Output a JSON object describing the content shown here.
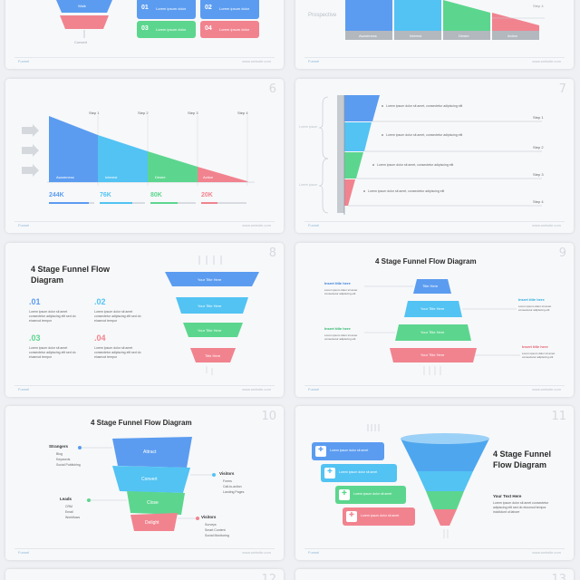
{
  "colors": {
    "blue": "#5b9cf0",
    "cyan": "#52c3f3",
    "green": "#5cd68e",
    "pink": "#f1838f"
  },
  "slide_numbers": [
    "6",
    "7",
    "8",
    "9",
    "10",
    "11",
    "12",
    "13"
  ],
  "top_left": {
    "funnel_labels": [
      "Walk",
      "Convert"
    ],
    "cards": [
      {
        "num": "01",
        "text": "Lorem ipsum dolor"
      },
      {
        "num": "02",
        "text": "Lorem ipsum dolor"
      },
      {
        "num": "03",
        "text": "Lorem ipsum dolor"
      },
      {
        "num": "04",
        "text": "Lorem ipsum dolor"
      }
    ]
  },
  "top_right": {
    "label": "Prospective",
    "step": "Step 4",
    "bar_labels": [
      "Awareness",
      "Interest",
      "Desire",
      "Action"
    ]
  },
  "slide6": {
    "steps": [
      "Step 1",
      "Step 2",
      "Step 3",
      "Step 4"
    ],
    "areas": [
      "Awareness",
      "Interest",
      "Desire",
      "Action"
    ],
    "values": [
      "244K",
      "76K",
      "80K",
      "20K"
    ]
  },
  "slide7": {
    "steps": [
      "Step 1",
      "Step 2",
      "Step 3",
      "Step 4"
    ],
    "side_labels": [
      "Lorem ipsum",
      "Lorem ipsum"
    ],
    "bullets": [
      "Lorem ipsum dolor sit amet, consectetur adipiscing elit",
      "Lorem ipsum dolor sit amet, consectetur adipiscing elit",
      "Lorem ipsum dolor sit amet, consectetur adipiscing elit",
      "Lorem ipsum dolor sit amet, consectetur adipiscing elit"
    ]
  },
  "slide8": {
    "title_line1": "4 Stage Funnel Flow",
    "title_line2": "Diagram",
    "items": [
      {
        "num": ".01",
        "text": "Lorem ipsum dolor sit amet consectetur adipiscing elit sed do eiusmod tempor"
      },
      {
        "num": ".02",
        "text": "Lorem ipsum dolor sit amet consectetur adipiscing elit sed do eiusmod tempor"
      },
      {
        "num": ".03",
        "text": "Lorem ipsum dolor sit amet consectetur adipiscing elit sed do eiusmod tempor"
      },
      {
        "num": ".04",
        "text": "Lorem ipsum dolor sit amet consectetur adipiscing elit sed do eiusmod tempor"
      }
    ],
    "layers": [
      "Your Title Here",
      "Your Title Here",
      "Your Title Here",
      "Title Here"
    ]
  },
  "slide9": {
    "title": "4 Stage Funnel Flow Diagram",
    "layers": [
      "Title Here",
      "Your Title Here",
      "Your Title Here",
      "Your Title Here"
    ],
    "callouts": [
      "Insert title here",
      "Insert title here",
      "Insert title here",
      "Insert title here"
    ],
    "callout_text": "Lorem ipsum dolor sit amet consectetur adipiscing elit"
  },
  "slide10": {
    "title": "4 Stage Funnel Flow Diagram",
    "layers": [
      "Attract",
      "Convert",
      "Close",
      "Delight"
    ],
    "groups": [
      {
        "title": "Strangers",
        "items": [
          "Blog",
          "Keywords",
          "Social Publishing"
        ]
      },
      {
        "title": "Visitors",
        "items": [
          "Forms",
          "Call-to-action",
          "Landing Pages"
        ]
      },
      {
        "title": "Leads",
        "items": [
          "CRM",
          "Email",
          "Workflows"
        ]
      },
      {
        "title": "Visitors",
        "items": [
          "Surveys",
          "Smart Content",
          "Social Monitoring"
        ]
      }
    ]
  },
  "slide11": {
    "title_line1": "4 Stage Funnel",
    "title_line2": "Flow Diagram",
    "subtitle": "Your Text Here",
    "body": "Lorem ipsum dolor sit amet consectetur adipiscing elit sed do eiusmod tempor incididunt ut labore",
    "cards": [
      "Lorem ipsum dolor sit amet",
      "Lorem ipsum dolor sit amet",
      "Lorem ipsum dolor sit amet",
      "Lorem ipsum dolor sit amet"
    ]
  },
  "footer": {
    "brand": "Funnel",
    "url": "www.website.com"
  }
}
